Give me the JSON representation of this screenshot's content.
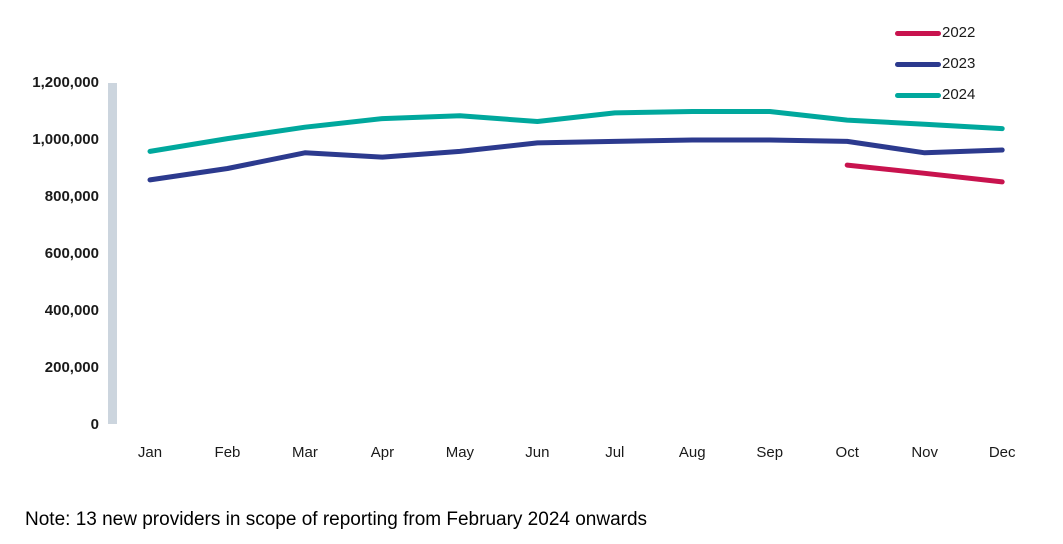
{
  "note": "Note: 13 new providers in scope of reporting from February 2024 onwards",
  "legend": {
    "position": "top-right",
    "items": [
      "2022",
      "2023",
      "2024"
    ]
  },
  "axis_bar_color": "#CCD5DE",
  "chart_data": {
    "type": "line",
    "title": "",
    "xlabel": "",
    "ylabel": "",
    "grid": false,
    "legend_position": "top-right",
    "categories": [
      "Jan",
      "Feb",
      "Mar",
      "Apr",
      "May",
      "Jun",
      "Jul",
      "Aug",
      "Sep",
      "Oct",
      "Nov",
      "Dec"
    ],
    "series": [
      {
        "name": "2022",
        "color": "#C8134E",
        "values": [
          null,
          null,
          null,
          null,
          null,
          null,
          null,
          null,
          null,
          912000,
          883000,
          853000
        ]
      },
      {
        "name": "2023",
        "color": "#2C3A8E",
        "values": [
          860000,
          900000,
          955000,
          940000,
          960000,
          990000,
          995000,
          1000000,
          1000000,
          995000,
          955000,
          965000
        ]
      },
      {
        "name": "2024",
        "color": "#00A89D",
        "values": [
          960000,
          1005000,
          1045000,
          1075000,
          1085000,
          1065000,
          1095000,
          1100000,
          1100000,
          1070000,
          1055000,
          1040000
        ]
      }
    ],
    "ylim": [
      0,
      1200000
    ],
    "yticks": [
      {
        "value": 1200000,
        "label": "1,200,000"
      },
      {
        "value": 1000000,
        "label": "1,000,000"
      },
      {
        "value": 800000,
        "label": "800,000"
      },
      {
        "value": 600000,
        "label": "600,000"
      },
      {
        "value": 400000,
        "label": "400,000"
      },
      {
        "value": 200000,
        "label": "200,000"
      },
      {
        "value": 0,
        "label": "0"
      }
    ]
  }
}
